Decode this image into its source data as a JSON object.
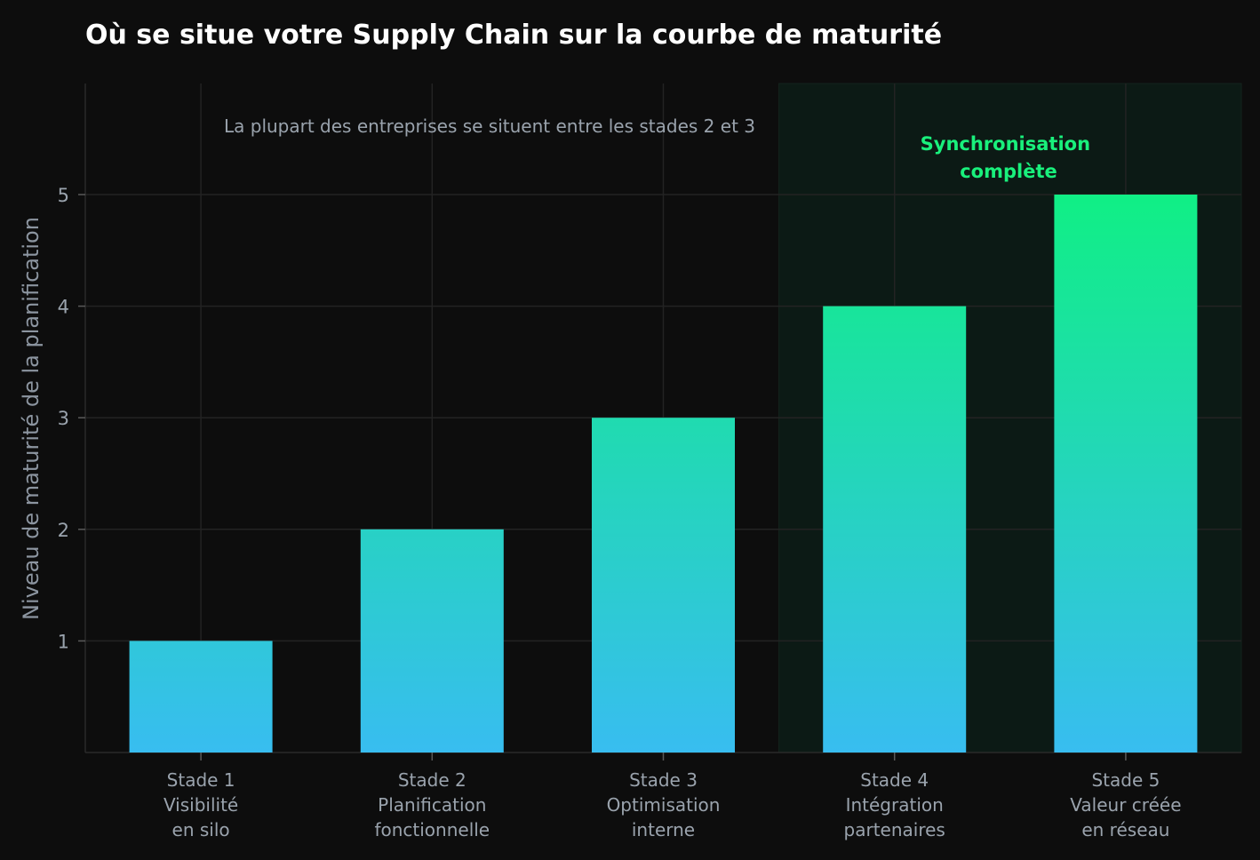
{
  "chart_data": {
    "type": "bar",
    "title": "Où se situe votre Supply Chain sur la courbe de maturité",
    "xlabel": "",
    "ylabel": "Niveau de maturité de la planification",
    "categories": [
      [
        "Stade 1",
        "Visibilité",
        "en silo"
      ],
      [
        "Stade 2",
        "Planification",
        "fonctionnelle"
      ],
      [
        "Stade 3",
        "Optimisation",
        "interne"
      ],
      [
        "Stade 4",
        "Intégration",
        "partenaires"
      ],
      [
        "Stade 5",
        "Valeur créée",
        "en réseau"
      ]
    ],
    "values": [
      1,
      2,
      3,
      4,
      5
    ],
    "ylim": [
      0,
      6
    ],
    "yticks": [
      1,
      2,
      3,
      4,
      5
    ],
    "grid": true,
    "annotations": {
      "note": "La plupart des entreprises se situent entre les stades 2 et 3",
      "highlight": [
        "Synchronisation",
        "complète"
      ]
    },
    "highlight_region": {
      "from_category": 3,
      "to_category": 4
    },
    "colors": {
      "background": "#0d0d0d",
      "grid": "#232323",
      "bar_bottom": "#38bdf0",
      "bar_top": "#10ef85",
      "highlight_fill": "#0c1a15",
      "highlight_text": "#19f07c",
      "axis_text": "#9aa3ad",
      "title": "#ffffff"
    }
  }
}
